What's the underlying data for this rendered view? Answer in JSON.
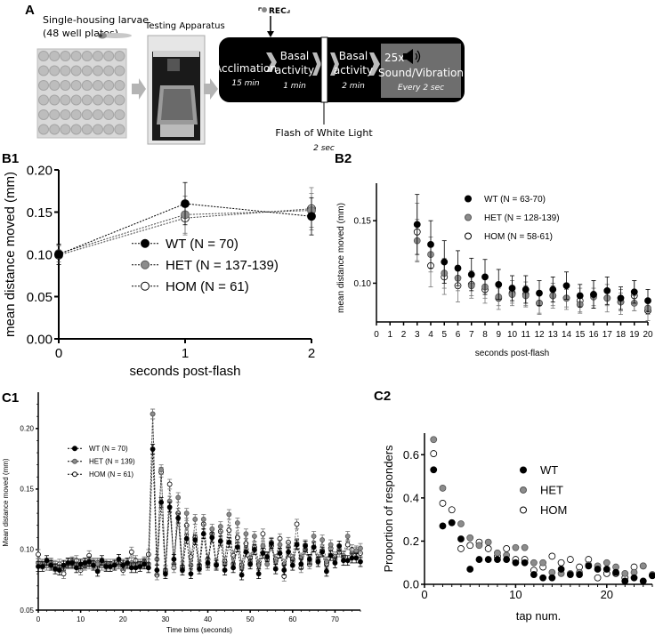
{
  "panels": {
    "A": "A",
    "B1": "B1",
    "B2": "B2",
    "C1": "C1",
    "C2": "C2"
  },
  "panel_a": {
    "housing_line1": "Single-housing larvae",
    "housing_line2": "(48 well plates)",
    "apparatus": "Testing Apparatus",
    "rec": "REC",
    "steps": [
      {
        "title": "Acclimation",
        "title2": "",
        "duration": "15 min"
      },
      {
        "title": "Basal",
        "title2": "activity",
        "duration": "1 min"
      },
      {
        "title": "Basal",
        "title2": "activity",
        "duration": "2 min"
      }
    ],
    "stim_count": "25x",
    "stim_label": "Sound/Vibration",
    "stim_interval": "Every 2 sec",
    "flash_label": "Flash of White Light",
    "flash_duration": "2 sec",
    "icons": [
      "larva-image",
      "well-plate-image",
      "apparatus-image",
      "arrow-icon",
      "speaker-icon",
      "record-icon"
    ]
  },
  "colors": {
    "WT": "#000000",
    "HET": "#8c8c8c",
    "HOM": "#ffffff",
    "timeline_bg": "#000000",
    "stim_box": "#6e6e6e",
    "arrow": "#b4b4b4"
  },
  "chart_data": [
    {
      "panel": "B1",
      "type": "line",
      "xlabel": "seconds post-flash",
      "ylabel": "mean distance moved (mm)",
      "xlim": [
        0,
        2
      ],
      "ylim": [
        0,
        0.2
      ],
      "xticks": [
        "0",
        "1",
        "2"
      ],
      "yticks": [
        "0.00",
        "0.05",
        "0.10",
        "0.15",
        "0.20"
      ],
      "legend": "center-right",
      "x": [
        0,
        1,
        2
      ],
      "series": [
        {
          "name": "WT (N = 70)",
          "values": [
            0.1,
            0.16,
            0.145
          ],
          "err": [
            0.012,
            0.025,
            0.022
          ]
        },
        {
          "name": "HET (N = 137-139)",
          "values": [
            0.101,
            0.147,
            0.152
          ],
          "err": [
            0.01,
            0.022,
            0.02
          ]
        },
        {
          "name": "HOM (N = 61)",
          "values": [
            0.099,
            0.143,
            0.154
          ],
          "err": [
            0.011,
            0.02,
            0.025
          ]
        }
      ]
    },
    {
      "panel": "B2",
      "type": "scatter",
      "xlabel": "seconds post-flash",
      "ylabel": "mean distance moved (mm)",
      "xlim": [
        0,
        20
      ],
      "ylim": [
        0.069,
        0.18
      ],
      "xticks": [
        "0",
        "1",
        "2",
        "3",
        "4",
        "5",
        "6",
        "7",
        "8",
        "9",
        "10",
        "11",
        "12",
        "13",
        "14",
        "15",
        "16",
        "17",
        "18",
        "19",
        "20"
      ],
      "yticks": [
        "0.10",
        "0.15"
      ],
      "legend": "top-right",
      "x": [
        3,
        4,
        5,
        6,
        7,
        8,
        9,
        10,
        11,
        12,
        13,
        14,
        15,
        16,
        17,
        18,
        19,
        20
      ],
      "series": [
        {
          "name": "WT (N = 63-70)",
          "values": [
            0.147,
            0.131,
            0.117,
            0.112,
            0.107,
            0.105,
            0.099,
            0.096,
            0.095,
            0.092,
            0.095,
            0.098,
            0.09,
            0.091,
            0.094,
            0.088,
            0.093,
            0.086
          ],
          "err": [
            0.024,
            0.019,
            0.017,
            0.014,
            0.013,
            0.014,
            0.012,
            0.01,
            0.011,
            0.01,
            0.01,
            0.011,
            0.009,
            0.011,
            0.011,
            0.009,
            0.009,
            0.009
          ]
        },
        {
          "name": "HET (N = 128-139)",
          "values": [
            0.134,
            0.123,
            0.108,
            0.104,
            0.098,
            0.097,
            0.089,
            0.091,
            0.09,
            0.084,
            0.09,
            0.088,
            0.083,
            0.089,
            0.088,
            0.085,
            0.084,
            0.08
          ],
          "err": [
            0.017,
            0.014,
            0.012,
            0.01,
            0.008,
            0.009,
            0.007,
            0.007,
            0.008,
            0.008,
            0.008,
            0.007,
            0.006,
            0.007,
            0.006,
            0.007,
            0.006,
            0.005
          ]
        },
        {
          "name": "HOM (N = 58-61)",
          "values": [
            0.141,
            0.114,
            0.105,
            0.098,
            0.099,
            0.095,
            0.088,
            0.092,
            0.091,
            0.084,
            0.09,
            0.088,
            0.086,
            0.091,
            0.088,
            0.085,
            0.09,
            0.078
          ],
          "err": [
            0.023,
            0.017,
            0.014,
            0.013,
            0.011,
            0.011,
            0.009,
            0.01,
            0.01,
            0.009,
            0.01,
            0.009,
            0.01,
            0.011,
            0.011,
            0.01,
            0.012,
            0.008
          ]
        }
      ]
    },
    {
      "panel": "C1",
      "type": "line",
      "xlabel": "Time bims (seconds)",
      "ylabel": "Mean distance moved (mm)",
      "xlim": [
        0,
        76
      ],
      "ylim": [
        0.05,
        0.23
      ],
      "xticks": [
        "0",
        "10",
        "20",
        "30",
        "40",
        "50",
        "60",
        "70"
      ],
      "yticks": [
        "0.05",
        "0.10",
        "0.15",
        "0.20"
      ],
      "legend": "top-left",
      "series": [
        {
          "name": "WT (N = 70)",
          "values": [
            0.086,
            0.086,
            0.091,
            0.087,
            0.084,
            0.083,
            0.087,
            0.089,
            0.089,
            0.085,
            0.088,
            0.089,
            0.09,
            0.087,
            0.082,
            0.091,
            0.086,
            0.086,
            0.087,
            0.092,
            0.087,
            0.089,
            0.085,
            0.085,
            0.086,
            0.088,
            0.085,
            0.183,
            0.083,
            0.139,
            0.08,
            0.135,
            0.092,
            0.126,
            0.083,
            0.109,
            0.08,
            0.108,
            0.084,
            0.113,
            0.089,
            0.11,
            0.087,
            0.107,
            0.083,
            0.106,
            0.085,
            0.102,
            0.079,
            0.098,
            0.088,
            0.1,
            0.08,
            0.097,
            0.094,
            0.105,
            0.084,
            0.097,
            0.083,
            0.098,
            0.087,
            0.104,
            0.088,
            0.103,
            0.092,
            0.102,
            0.09,
            0.098,
            0.082,
            0.095,
            0.089,
            0.103,
            0.091,
            0.091,
            0.093,
            0.093,
            0.09
          ]
        },
        {
          "name": "HET (N = 139)",
          "values": [
            0.089,
            0.088,
            0.089,
            0.088,
            0.087,
            0.086,
            0.086,
            0.089,
            0.088,
            0.088,
            0.087,
            0.088,
            0.088,
            0.089,
            0.088,
            0.089,
            0.087,
            0.088,
            0.088,
            0.089,
            0.088,
            0.088,
            0.089,
            0.088,
            0.088,
            0.089,
            0.088,
            0.212,
            0.092,
            0.166,
            0.083,
            0.14,
            0.088,
            0.143,
            0.086,
            0.13,
            0.087,
            0.125,
            0.086,
            0.125,
            0.087,
            0.117,
            0.088,
            0.119,
            0.088,
            0.129,
            0.088,
            0.122,
            0.085,
            0.113,
            0.09,
            0.111,
            0.087,
            0.103,
            0.088,
            0.106,
            0.09,
            0.104,
            0.088,
            0.102,
            0.09,
            0.105,
            0.093,
            0.104,
            0.09,
            0.111,
            0.092,
            0.108,
            0.09,
            0.104,
            0.092,
            0.1,
            0.095,
            0.111,
            0.097,
            0.099,
            0.101
          ]
        },
        {
          "name": "HOM (N = 61)",
          "values": [
            0.096,
            0.088,
            0.087,
            0.089,
            0.086,
            0.088,
            0.08,
            0.088,
            0.09,
            0.091,
            0.083,
            0.087,
            0.095,
            0.088,
            0.089,
            0.087,
            0.088,
            0.086,
            0.088,
            0.088,
            0.083,
            0.088,
            0.098,
            0.091,
            0.088,
            0.09,
            0.096,
            0.212,
            0.079,
            0.164,
            0.082,
            0.154,
            0.085,
            0.13,
            0.085,
            0.12,
            0.094,
            0.11,
            0.087,
            0.121,
            0.092,
            0.113,
            0.088,
            0.115,
            0.09,
            0.116,
            0.095,
            0.11,
            0.087,
            0.105,
            0.093,
            0.102,
            0.088,
            0.113,
            0.092,
            0.103,
            0.092,
            0.109,
            0.078,
            0.106,
            0.092,
            0.121,
            0.085,
            0.1,
            0.088,
            0.102,
            0.09,
            0.099,
            0.088,
            0.101,
            0.094,
            0.098,
            0.094,
            0.104,
            0.1,
            0.098,
            0.097
          ]
        }
      ]
    },
    {
      "panel": "C2",
      "type": "scatter",
      "xlabel": "tap num.",
      "ylabel": "Proportion of responders",
      "xlim": [
        0,
        25
      ],
      "ylim": [
        0,
        0.7
      ],
      "xticks": [
        "0",
        "10",
        "20"
      ],
      "yticks": [
        "0.0",
        "0.2",
        "0.4",
        "0.6"
      ],
      "legend": "top-right",
      "x": [
        1,
        2,
        3,
        4,
        5,
        6,
        7,
        8,
        9,
        10,
        11,
        12,
        13,
        14,
        15,
        16,
        17,
        18,
        19,
        20,
        21,
        22,
        23,
        24,
        25
      ],
      "series": [
        {
          "name": "WT",
          "values": [
            0.53,
            0.27,
            0.285,
            0.21,
            0.07,
            0.115,
            0.115,
            0.115,
            0.115,
            0.1,
            0.1,
            0.045,
            0.03,
            0.03,
            0.07,
            0.045,
            0.045,
            0.085,
            0.07,
            0.07,
            0.055,
            0.015,
            0.03,
            0.015,
            0.04
          ]
        },
        {
          "name": "HET",
          "values": [
            0.67,
            0.445,
            0.285,
            0.28,
            0.215,
            0.18,
            0.195,
            0.145,
            0.135,
            0.17,
            0.17,
            0.1,
            0.1,
            0.055,
            0.05,
            0.05,
            0.055,
            0.09,
            0.085,
            0.1,
            0.08,
            0.05,
            0.055,
            0.085,
            0.045
          ]
        },
        {
          "name": "HOM",
          "values": [
            0.605,
            0.375,
            0.345,
            0.165,
            0.18,
            0.195,
            0.165,
            0.13,
            0.165,
            0.115,
            0.115,
            0.065,
            0.08,
            0.13,
            0.1,
            0.115,
            0.08,
            0.115,
            0.03,
            0.05,
            0.05,
            0.03,
            0.08,
            0.085,
            0.04
          ]
        }
      ]
    }
  ]
}
